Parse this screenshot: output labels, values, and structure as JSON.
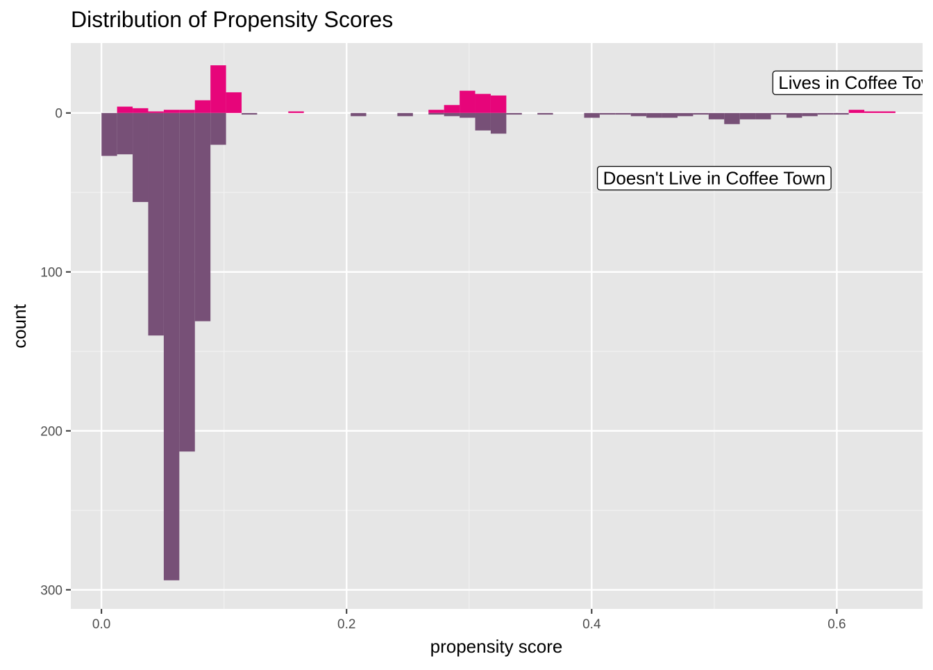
{
  "chart_data": {
    "type": "bar",
    "title": "Distribution of Propensity Scores",
    "xlabel": "propensity score",
    "ylabel": "count",
    "xlim": [
      -0.025,
      0.67
    ],
    "ylim": [
      -44,
      312
    ],
    "y_reversed": true,
    "grid": true,
    "x_ticks": [
      0.0,
      0.2,
      0.4,
      0.6
    ],
    "x_tick_labels": [
      "0.0",
      "0.2",
      "0.4",
      "0.6"
    ],
    "y_ticks": [
      0,
      100,
      200,
      300
    ],
    "y_tick_labels": [
      "0",
      "100",
      "200",
      "300"
    ],
    "bin_width": 0.0127,
    "series": [
      {
        "name": "Lives in Coffee Town",
        "color": "#e7057a",
        "direction": "up",
        "bins": [
          {
            "x": 0.0064,
            "count": 0
          },
          {
            "x": 0.0191,
            "count": 4
          },
          {
            "x": 0.0318,
            "count": 3
          },
          {
            "x": 0.0445,
            "count": 1
          },
          {
            "x": 0.0572,
            "count": 2
          },
          {
            "x": 0.0699,
            "count": 2
          },
          {
            "x": 0.0826,
            "count": 8
          },
          {
            "x": 0.0953,
            "count": 30
          },
          {
            "x": 0.108,
            "count": 13
          },
          {
            "x": 0.1588,
            "count": 1
          },
          {
            "x": 0.2732,
            "count": 2
          },
          {
            "x": 0.2859,
            "count": 5
          },
          {
            "x": 0.2986,
            "count": 14
          },
          {
            "x": 0.3113,
            "count": 12
          },
          {
            "x": 0.324,
            "count": 11
          },
          {
            "x": 0.6161,
            "count": 2
          },
          {
            "x": 0.6288,
            "count": 1
          },
          {
            "x": 0.6415,
            "count": 1
          }
        ]
      },
      {
        "name": "Doesn't Live in Coffee Town",
        "color": "#775077",
        "direction": "down",
        "bins": [
          {
            "x": 0.0064,
            "count": 27
          },
          {
            "x": 0.0191,
            "count": 26
          },
          {
            "x": 0.0318,
            "count": 56
          },
          {
            "x": 0.0445,
            "count": 140
          },
          {
            "x": 0.0572,
            "count": 294
          },
          {
            "x": 0.0699,
            "count": 213
          },
          {
            "x": 0.0826,
            "count": 131
          },
          {
            "x": 0.0953,
            "count": 20
          },
          {
            "x": 0.1207,
            "count": 1
          },
          {
            "x": 0.2097,
            "count": 2
          },
          {
            "x": 0.2478,
            "count": 2
          },
          {
            "x": 0.2732,
            "count": 1
          },
          {
            "x": 0.2859,
            "count": 2
          },
          {
            "x": 0.2986,
            "count": 3
          },
          {
            "x": 0.3113,
            "count": 11
          },
          {
            "x": 0.324,
            "count": 13
          },
          {
            "x": 0.3367,
            "count": 1
          },
          {
            "x": 0.3621,
            "count": 1
          },
          {
            "x": 0.4002,
            "count": 3
          },
          {
            "x": 0.4129,
            "count": 1
          },
          {
            "x": 0.4256,
            "count": 1
          },
          {
            "x": 0.4383,
            "count": 2
          },
          {
            "x": 0.451,
            "count": 3
          },
          {
            "x": 0.4637,
            "count": 3
          },
          {
            "x": 0.4764,
            "count": 2
          },
          {
            "x": 0.4891,
            "count": 1
          },
          {
            "x": 0.5018,
            "count": 4
          },
          {
            "x": 0.5145,
            "count": 7
          },
          {
            "x": 0.5272,
            "count": 4
          },
          {
            "x": 0.5399,
            "count": 4
          },
          {
            "x": 0.5526,
            "count": 1
          },
          {
            "x": 0.5653,
            "count": 3
          },
          {
            "x": 0.578,
            "count": 2
          },
          {
            "x": 0.5907,
            "count": 1
          },
          {
            "x": 0.6034,
            "count": 1
          }
        ]
      }
    ],
    "annotations": [
      {
        "text": "Lives in Coffee Town",
        "x": 0.62,
        "y": -19
      },
      {
        "text": "Doesn't Live in Coffee Town",
        "x": 0.5,
        "y": 41
      }
    ]
  },
  "colors": {
    "panel": "#e6e6e6",
    "grid_major": "#ffffff",
    "grid_minor": "#f2f2f2",
    "tick_text": "#4d4d4d"
  }
}
